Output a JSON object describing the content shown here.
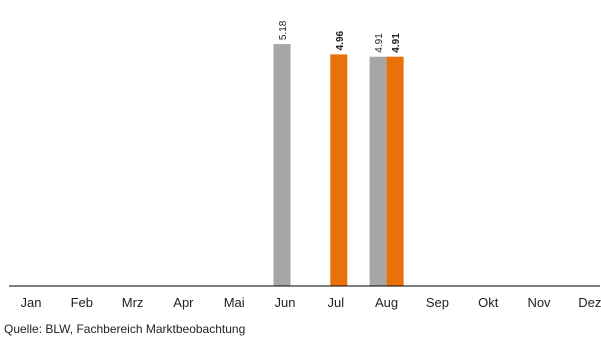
{
  "chart_data": {
    "type": "bar",
    "title": "",
    "xlabel": "",
    "ylabel": "",
    "categories": [
      "Jan",
      "Feb",
      "Mrz",
      "Apr",
      "Mai",
      "Jun",
      "Jul",
      "Aug",
      "Sep",
      "Okt",
      "Nov",
      "Dez"
    ],
    "series": [
      {
        "color": "#a6a6a6",
        "values": [
          null,
          null,
          null,
          null,
          null,
          5.18,
          null,
          4.91,
          null,
          null,
          null,
          null
        ],
        "labels": [
          null,
          null,
          null,
          null,
          null,
          "5.18",
          null,
          "4.91",
          null,
          null,
          null,
          null
        ],
        "label_bold": false
      },
      {
        "color": "#e8710a",
        "values": [
          null,
          null,
          null,
          null,
          null,
          null,
          4.96,
          4.91,
          null,
          null,
          null,
          null
        ],
        "labels": [
          null,
          null,
          null,
          null,
          null,
          null,
          "4.96",
          "4.91",
          null,
          null,
          null,
          null
        ],
        "label_bold": true
      }
    ],
    "ylim": [
      0,
      5.5
    ],
    "grid": false,
    "legend": "none"
  },
  "source_note": "Quelle: BLW, Fachbereich Marktbeobachtung"
}
